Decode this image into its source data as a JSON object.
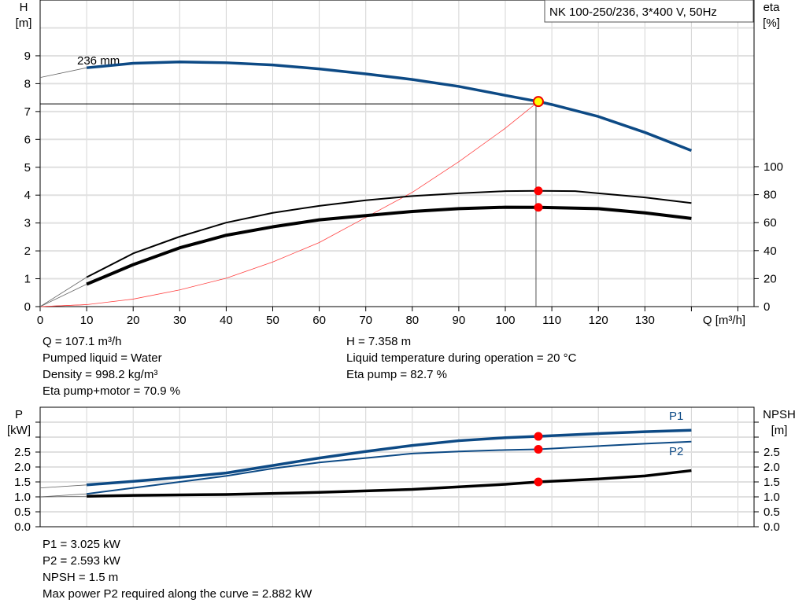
{
  "chart_data": [
    {
      "type": "line",
      "title": "NK 100-250/236, 3*400 V, 50Hz",
      "xlabel": "Q [m³/h]",
      "ylabel": "H [m]",
      "y2label": "eta [%]",
      "xlim": [
        0,
        150
      ],
      "ylim": [
        0,
        10
      ],
      "y2lim": [
        0,
        100
      ],
      "xticks": [
        0,
        10,
        20,
        30,
        40,
        50,
        60,
        70,
        80,
        90,
        100,
        110,
        120,
        130
      ],
      "yticks": [
        0,
        1,
        2,
        3,
        4,
        5,
        6,
        7,
        8,
        9
      ],
      "y2ticks": [
        0,
        20,
        40,
        60,
        80,
        100
      ],
      "grid": true,
      "curve_label": "236 mm",
      "series": [
        {
          "axis": "H",
          "color": "#0d4a85",
          "x": [
            0,
            10,
            20,
            30,
            40,
            50,
            60,
            70,
            80,
            90,
            100,
            107.1,
            110,
            120,
            130,
            140
          ],
          "y": [
            8.22,
            8.57,
            8.73,
            8.78,
            8.75,
            8.67,
            8.53,
            8.35,
            8.15,
            7.9,
            7.58,
            7.358,
            7.25,
            6.82,
            6.25,
            5.6
          ]
        },
        {
          "axis": "H",
          "color": "#ff4040",
          "x": [
            0,
            10,
            20,
            30,
            40,
            50,
            60,
            70,
            80,
            90,
            100,
            107.1
          ],
          "y": [
            0,
            0.07,
            0.27,
            0.6,
            1.02,
            1.6,
            2.3,
            3.2,
            4.1,
            5.2,
            6.4,
            7.358
          ]
        },
        {
          "axis": "eta",
          "color": "#000000",
          "x": [
            0,
            10,
            20,
            30,
            40,
            50,
            60,
            70,
            80,
            90,
            100,
            107.1,
            115,
            120,
            130,
            140
          ],
          "y": [
            0,
            21,
            38,
            50,
            60,
            67,
            72,
            76,
            79,
            81,
            82.5,
            82.7,
            82.5,
            81,
            78,
            74
          ]
        },
        {
          "axis": "eta",
          "color": "#000000",
          "x": [
            0,
            10,
            20,
            30,
            40,
            50,
            60,
            70,
            80,
            90,
            100,
            107.1,
            120,
            130,
            140
          ],
          "y": [
            0,
            16,
            30,
            42,
            51,
            57,
            62,
            65,
            68,
            70,
            71,
            70.9,
            70,
            67,
            63
          ]
        }
      ],
      "duty_point": {
        "Q": 107.1,
        "H": 7.358,
        "eta_pump": 82.7,
        "eta_total": 70.9
      }
    },
    {
      "type": "line",
      "xlim": [
        0,
        150
      ],
      "ylim": [
        0,
        4
      ],
      "y2lim": [
        0,
        4
      ],
      "ylabel": "P [kW]",
      "y2label": "NPSH [m]",
      "yticks": [
        "0.0",
        "0.5",
        "1.0",
        "1.5",
        "2.0",
        "2.5"
      ],
      "grid": true,
      "series": [
        {
          "name": "P1",
          "color": "#0d4a85",
          "x": [
            0,
            10,
            20,
            30,
            40,
            50,
            60,
            70,
            80,
            90,
            100,
            107.1,
            120,
            130,
            140
          ],
          "y": [
            1.3,
            1.4,
            1.52,
            1.65,
            1.8,
            2.05,
            2.3,
            2.52,
            2.72,
            2.88,
            2.98,
            3.025,
            3.12,
            3.18,
            3.23
          ]
        },
        {
          "name": "P2",
          "color": "#0d4a85",
          "x": [
            0,
            10,
            20,
            30,
            40,
            50,
            60,
            70,
            80,
            90,
            100,
            107.1,
            120,
            130,
            140
          ],
          "y": [
            1.0,
            1.1,
            1.3,
            1.5,
            1.7,
            1.95,
            2.15,
            2.3,
            2.45,
            2.52,
            2.57,
            2.593,
            2.7,
            2.78,
            2.85
          ]
        },
        {
          "name": "NPSH",
          "color": "#000000",
          "x": [
            0,
            10,
            20,
            40,
            60,
            80,
            100,
            107.1,
            120,
            130,
            140
          ],
          "y": [
            1.0,
            1.02,
            1.05,
            1.08,
            1.15,
            1.25,
            1.42,
            1.5,
            1.6,
            1.7,
            1.88
          ]
        }
      ],
      "duty_point": {
        "Q": 107.1,
        "P1": 3.025,
        "P2": 2.593,
        "NPSH": 1.5
      }
    }
  ],
  "info": {
    "q": "Q = 107.1 m³/h",
    "liquid": "Pumped liquid = Water",
    "density": "Density = 998.2 kg/m³",
    "eta_total": "Eta pump+motor = 70.9 %",
    "h": "H = 7.358 m",
    "temp": "Liquid temperature during operation = 20 °C",
    "eta_pump": "Eta pump = 82.7 %",
    "p1": "P1 = 3.025 kW",
    "p2": "P2 = 2.593 kW",
    "npsh": "NPSH = 1.5 m",
    "maxp2": "Max power P2 required along the curve = 2.882 kW"
  }
}
